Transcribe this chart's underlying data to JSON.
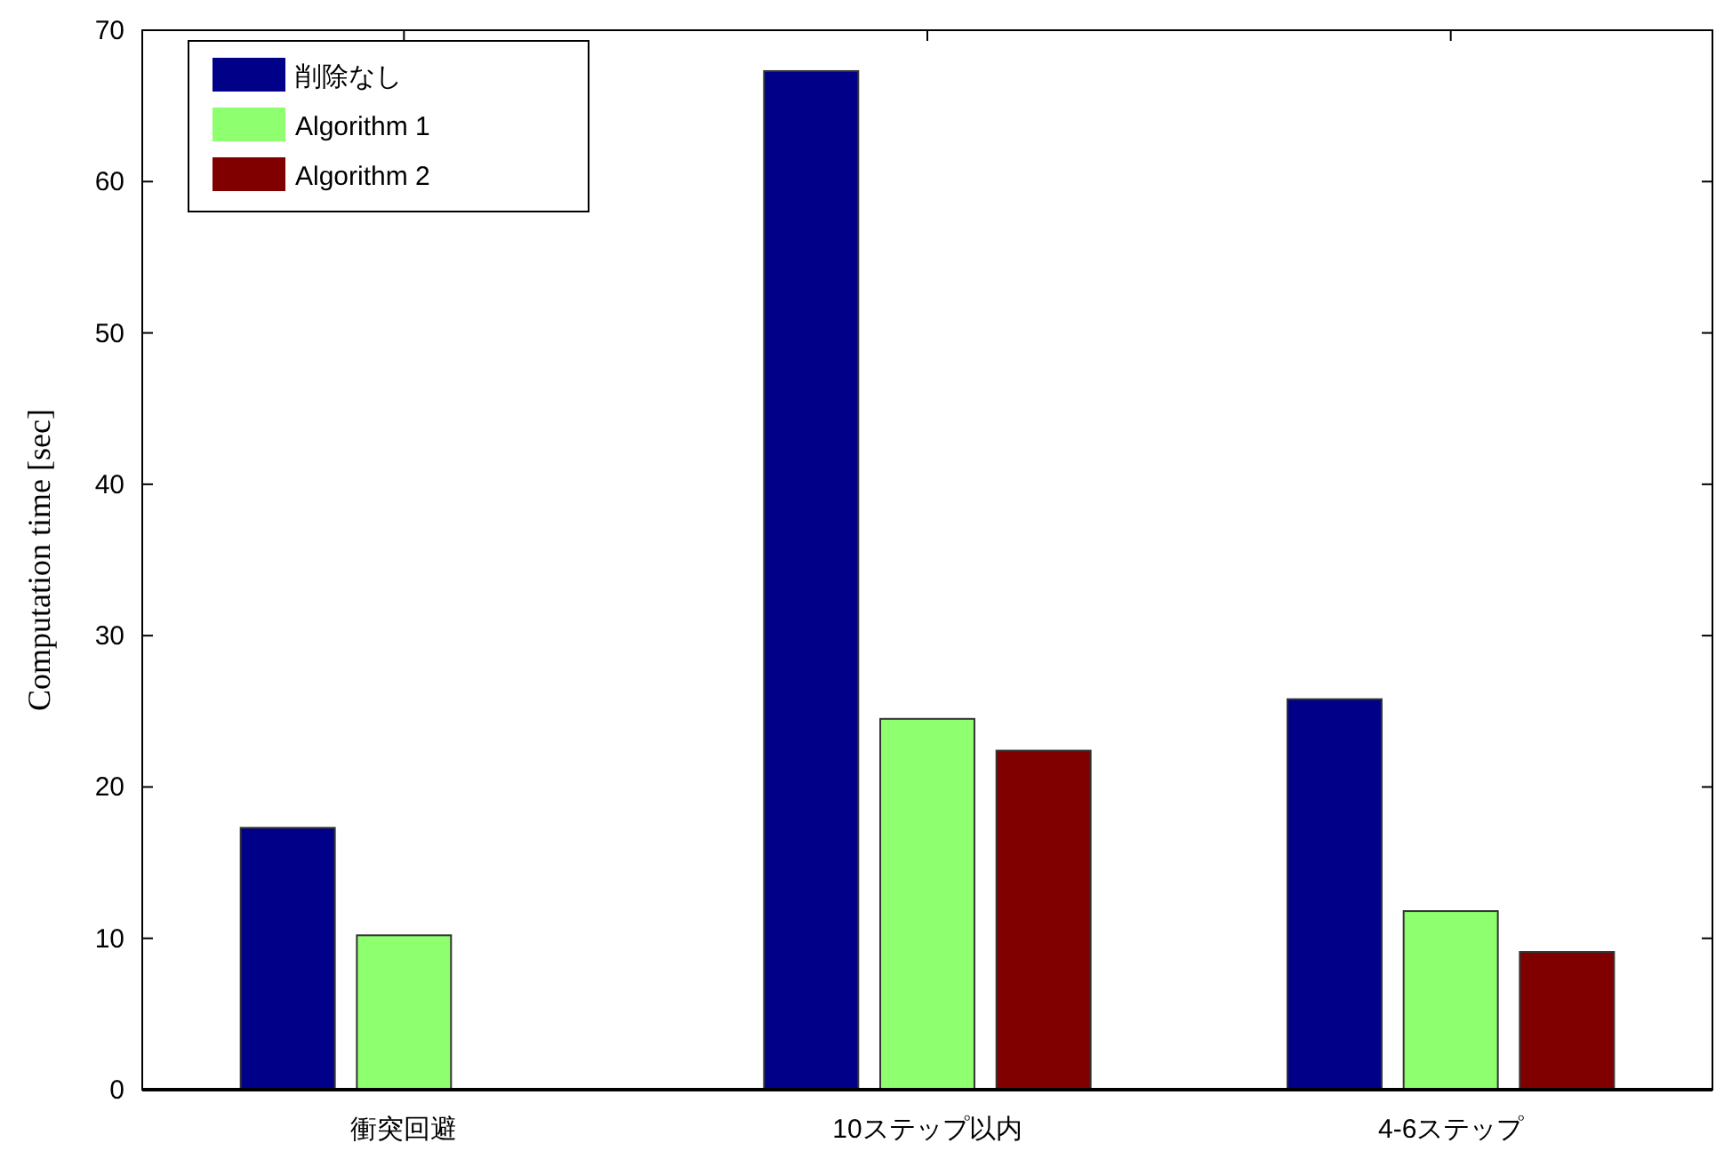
{
  "chart_data": {
    "type": "bar",
    "ylabel": "Computation time [sec]",
    "categories": [
      "衝突回避",
      "10ステップ以内",
      "4-6ステップ"
    ],
    "series": [
      {
        "name": "削除なし",
        "color": "#000088",
        "values": [
          17.3,
          67.3,
          25.8
        ]
      },
      {
        "name": "Algorithm 1",
        "color": "#8eff6e",
        "values": [
          10.2,
          24.5,
          11.8
        ]
      },
      {
        "name": "Algorithm 2",
        "color": "#800000",
        "values": [
          null,
          22.4,
          9.1
        ]
      }
    ],
    "ylim": [
      0,
      70
    ],
    "yticks": [
      0,
      10,
      20,
      30,
      40,
      50,
      60,
      70
    ],
    "grid": false,
    "legend": "top left"
  }
}
